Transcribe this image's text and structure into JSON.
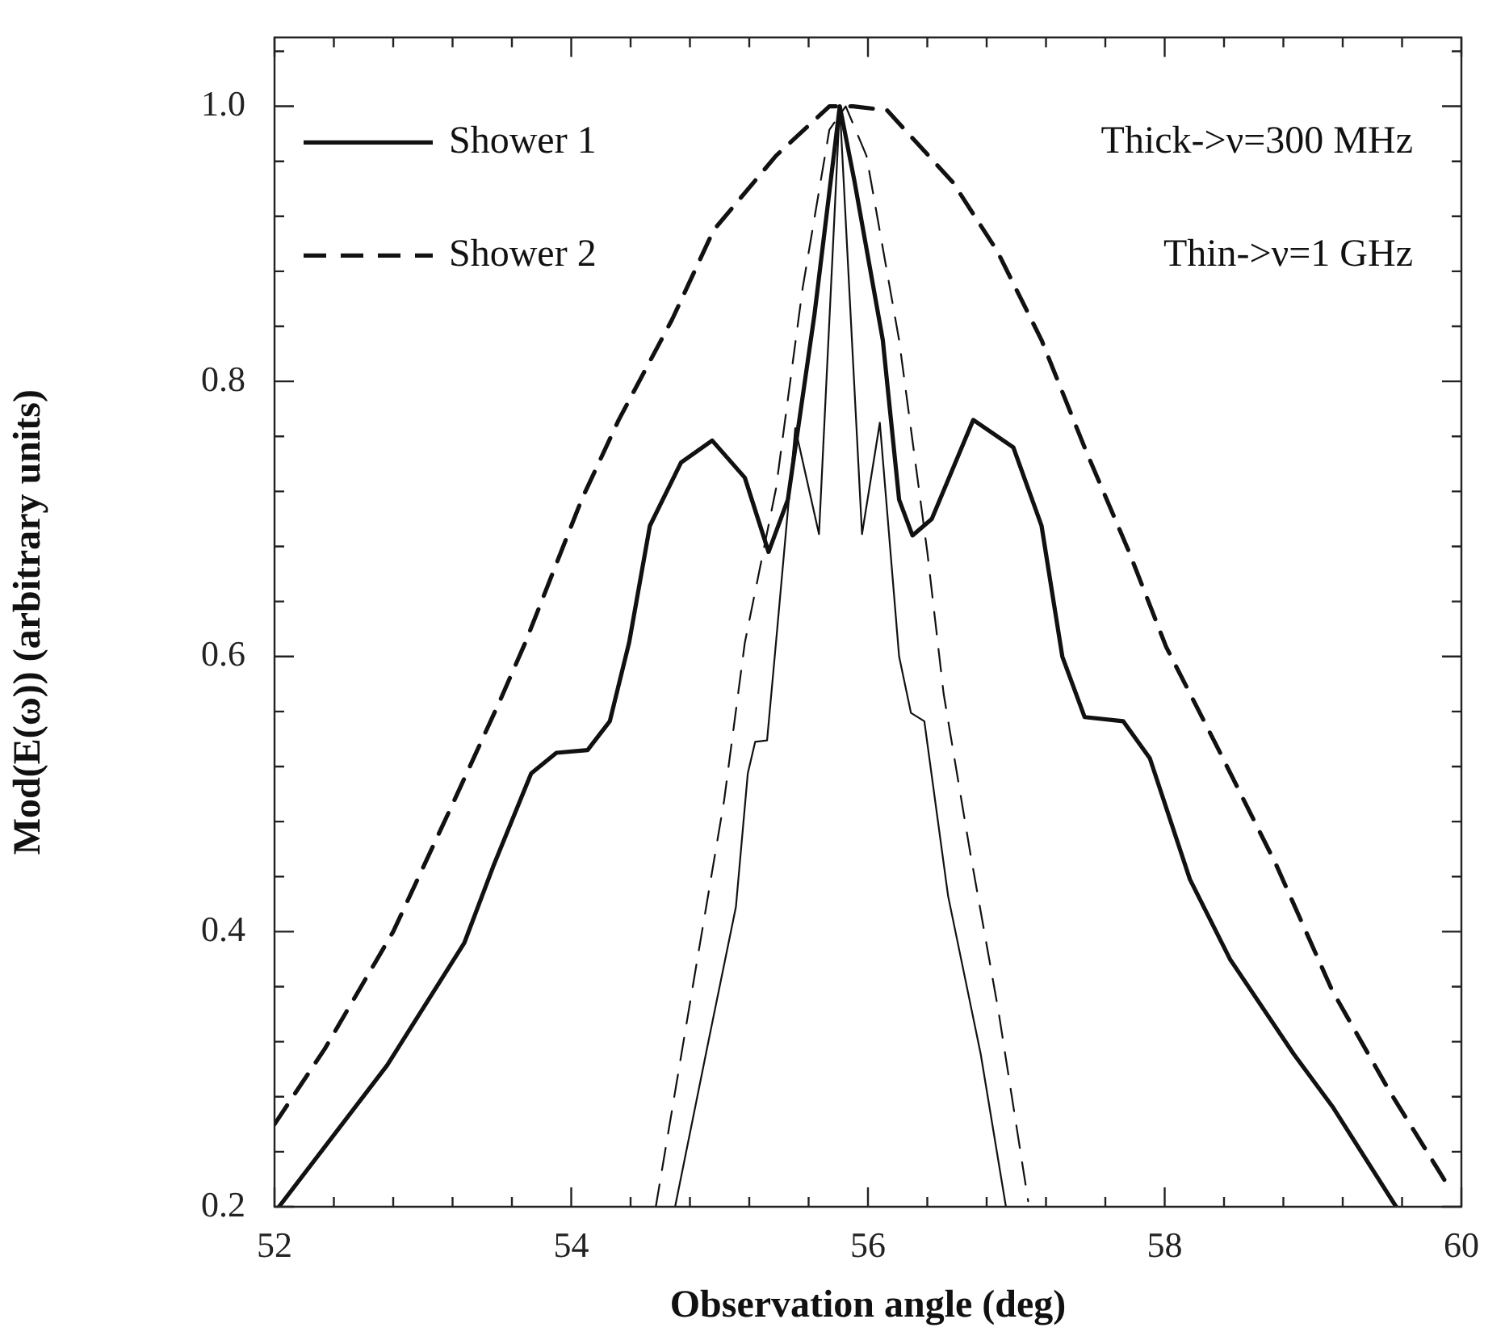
{
  "chart_data": {
    "type": "line",
    "xlabel": "Observation angle (deg)",
    "ylabel": "Mod(E(ω)) (arbitrary units)",
    "legend": "top left",
    "annotations": [
      "Thick->ν=300 MHz",
      "Thin->ν=1 GHz"
    ],
    "xlim": [
      52,
      60
    ],
    "ylim": [
      0.2,
      1.05
    ],
    "xticks": [
      52,
      {
        "value": 52.4,
        "label": null
      },
      {
        "value": 52.8,
        "label": null
      },
      {
        "value": 53.2,
        "label": null
      },
      {
        "value": 53.6,
        "label": null
      },
      54,
      {
        "value": 54.4,
        "label": null
      },
      {
        "value": 54.8,
        "label": null
      },
      {
        "value": 55.2,
        "label": null
      },
      {
        "value": 55.6,
        "label": null
      },
      56,
      {
        "value": 56.4,
        "label": null
      },
      {
        "value": 56.8,
        "label": null
      },
      {
        "value": 57.2,
        "label": null
      },
      {
        "value": 57.6,
        "label": null
      },
      58,
      {
        "value": 58.4,
        "label": null
      },
      {
        "value": 58.8,
        "label": null
      },
      {
        "value": 59.2,
        "label": null
      },
      {
        "value": 59.6,
        "label": null
      },
      60
    ],
    "yticks": [
      {
        "value": 0.2,
        "label": "0.2"
      },
      {
        "value": 0.24,
        "label": null
      },
      {
        "value": 0.28,
        "label": null
      },
      {
        "value": 0.32,
        "label": null
      },
      {
        "value": 0.36,
        "label": null
      },
      {
        "value": 0.4,
        "label": "0.4"
      },
      {
        "value": 0.44,
        "label": null
      },
      {
        "value": 0.48,
        "label": null
      },
      {
        "value": 0.52,
        "label": null
      },
      {
        "value": 0.56,
        "label": null
      },
      {
        "value": 0.6,
        "label": "0.6"
      },
      {
        "value": 0.64,
        "label": null
      },
      {
        "value": 0.68,
        "label": null
      },
      {
        "value": 0.72,
        "label": null
      },
      {
        "value": 0.76,
        "label": null
      },
      {
        "value": 0.8,
        "label": "0.8"
      },
      {
        "value": 0.84,
        "label": null
      },
      {
        "value": 0.88,
        "label": null
      },
      {
        "value": 0.92,
        "label": null
      },
      {
        "value": 0.96,
        "label": null
      },
      {
        "value": 1.0,
        "label": "1.0"
      },
      {
        "value": 1.04,
        "label": null
      }
    ],
    "series": [
      {
        "name": "Shower 1",
        "color": "#111111",
        "line_style": "solid",
        "x": [
          52.03,
          52.76,
          53.28,
          53.48,
          53.73,
          53.9,
          54.11,
          54.26,
          54.39,
          54.53,
          54.74,
          54.95,
          55.17,
          55.33,
          55.46,
          55.64,
          55.81,
          55.91,
          56.1,
          56.21,
          56.3,
          56.43,
          56.71,
          56.98,
          57.17,
          57.31,
          57.46,
          57.72,
          57.9,
          58.17,
          58.44,
          58.87,
          59.13,
          59.56
        ],
        "values": [
          0.2,
          0.303,
          0.392,
          0.449,
          0.515,
          0.53,
          0.532,
          0.553,
          0.61,
          0.695,
          0.741,
          0.757,
          0.73,
          0.676,
          0.714,
          0.849,
          1.0,
          0.945,
          0.83,
          0.714,
          0.688,
          0.7,
          0.772,
          0.752,
          0.695,
          0.6,
          0.556,
          0.553,
          0.526,
          0.438,
          0.38,
          0.311,
          0.273,
          0.2
        ]
      },
      {
        "name": "Shower 2",
        "color": "#111111",
        "line_style": "dashed",
        "x": [
          52,
          52.34,
          52.8,
          53.21,
          53.52,
          53.69,
          54.07,
          54.32,
          54.68,
          54.96,
          55.38,
          55.74,
          55.9,
          56.13,
          56.57,
          56.87,
          57.17,
          57.46,
          57.76,
          58.01,
          58.36,
          58.75,
          59.13,
          59.51,
          59.9
        ],
        "values": [
          0.26,
          0.315,
          0.4,
          0.495,
          0.568,
          0.61,
          0.714,
          0.772,
          0.845,
          0.91,
          0.964,
          1.0,
          1.0,
          0.997,
          0.945,
          0.895,
          0.83,
          0.752,
          0.676,
          0.607,
          0.533,
          0.449,
          0.357,
          0.285,
          0.217
        ]
      },
      {
        "color": "#111111",
        "line_style": "solid",
        "x": [
          54.7,
          54.93,
          55.11,
          55.19,
          55.24,
          55.32,
          55.38,
          55.51,
          55.67,
          55.81,
          55.96,
          56.08,
          56.21,
          56.29,
          56.38,
          56.54,
          56.76,
          56.93
        ],
        "values": [
          0.2,
          0.323,
          0.418,
          0.515,
          0.538,
          0.539,
          0.61,
          0.766,
          0.689,
          1.0,
          0.689,
          0.77,
          0.6,
          0.559,
          0.553,
          0.426,
          0.311,
          0.2
        ]
      },
      {
        "color": "#111111",
        "line_style": "dashed",
        "x": [
          54.57,
          54.85,
          55.03,
          55.17,
          55.38,
          55.56,
          55.74,
          55.85,
          55.99,
          56.21,
          56.4,
          56.51,
          56.69,
          56.88,
          57.08
        ],
        "values": [
          0.2,
          0.38,
          0.495,
          0.61,
          0.722,
          0.868,
          0.983,
          1.0,
          0.964,
          0.83,
          0.676,
          0.573,
          0.457,
          0.342,
          0.204
        ]
      }
    ]
  }
}
